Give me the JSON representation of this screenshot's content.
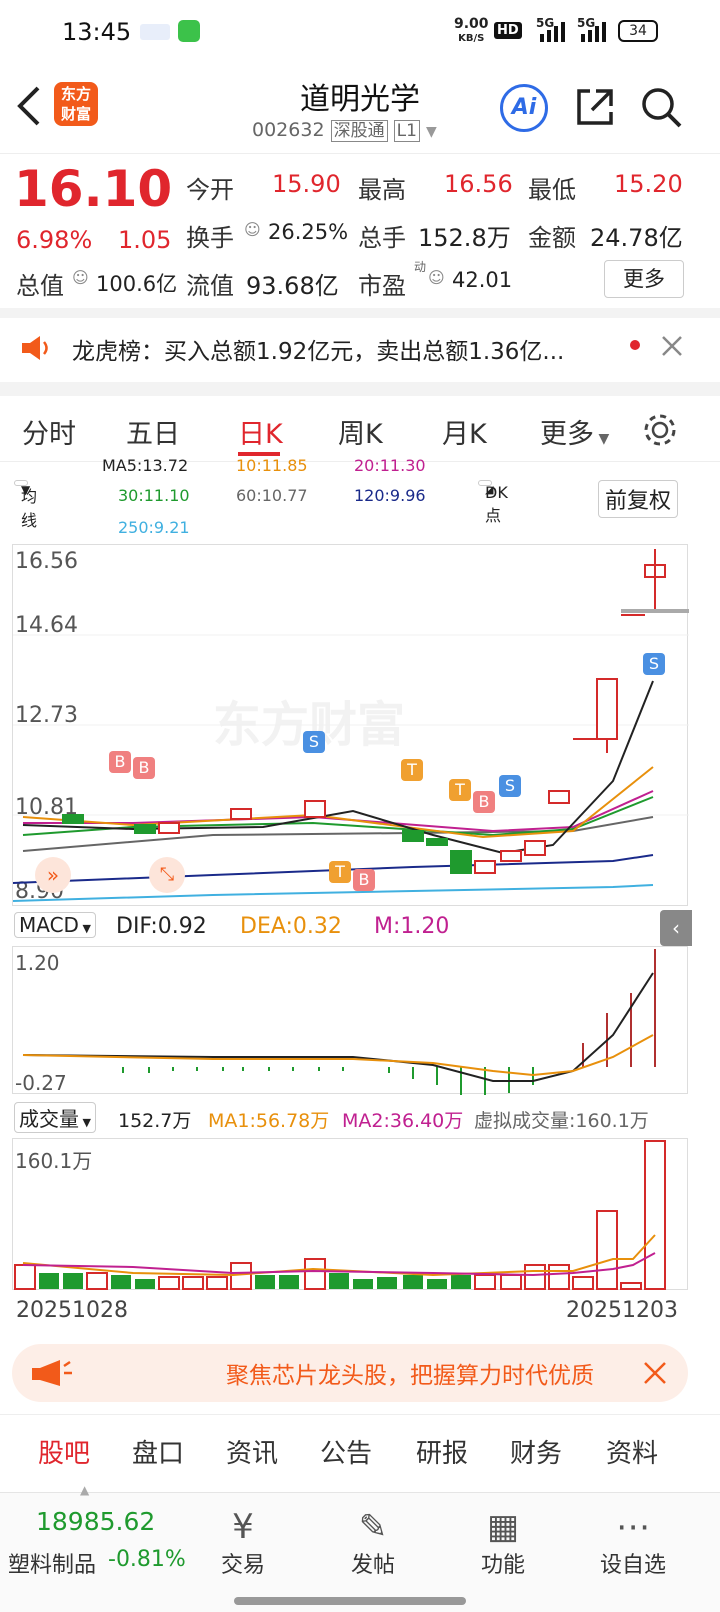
{
  "status_bar": {
    "time": "13:45",
    "net_speed": "9.00",
    "net_unit": "KB/S",
    "hd": "HD",
    "sig1": "5G",
    "sig2": "5G",
    "battery": "34"
  },
  "header": {
    "logo_line1": "东方",
    "logo_line2": "财富",
    "stock_name": "道明光学",
    "stock_code": "002632",
    "exchange_tag": "深股通",
    "level_tag": "L1",
    "ai_label": "Ai"
  },
  "quote": {
    "price": "16.10",
    "change_pct": "6.98%",
    "change_amt": "1.05",
    "open_label": "今开",
    "open": "15.90",
    "high_label": "最高",
    "high": "16.56",
    "low_label": "最低",
    "low": "15.20",
    "turnover_label": "换手",
    "turnover": "26.25%",
    "volume_label": "总手",
    "volume": "152.8万",
    "amount_label": "金额",
    "amount": "24.78亿",
    "mktcap_label": "总值",
    "mktcap": "100.6亿",
    "float_label": "流值",
    "float_cap": "93.68亿",
    "pe_label": "市盈",
    "pe_sup": "动",
    "pe": "42.01",
    "more_button": "更多"
  },
  "notice": {
    "text": "龙虎榜：买入总额1.92亿元，卖出总额1.36亿..."
  },
  "tabs": {
    "items": [
      "分时",
      "五日",
      "日K",
      "周K",
      "月K",
      "更多"
    ],
    "active": "日K"
  },
  "ma_legend": {
    "ma5": "MA5:13.72",
    "ma10": "10:11.85",
    "ma20": "20:11.30",
    "ma30": "30:11.10",
    "ma60": "60:10.77",
    "ma120": "120:9.96",
    "ma250": "250:9.21",
    "ma_select": "均线",
    "dk_button": "DK点",
    "adjust_button": "前复权",
    "colors": {
      "ma5": "#222222",
      "ma10": "#e8900c",
      "ma20": "#c02090",
      "ma30": "#1f9a2e",
      "ma60": "#666666",
      "ma120": "#1a2a8a",
      "ma250": "#40b0e0"
    }
  },
  "kline": {
    "y_labels": [
      "16.56",
      "14.64",
      "12.73",
      "10.81",
      "8.90"
    ],
    "watermark": "东方财富",
    "markers": [
      "B",
      "B",
      "S",
      "T",
      "B",
      "T",
      "T",
      "B",
      "S",
      "S"
    ]
  },
  "macd": {
    "select": "MACD",
    "dif": "DIF:0.92",
    "dea": "DEA:0.32",
    "m": "M:1.20",
    "y_top": "1.20",
    "y_bottom": "-0.27"
  },
  "volume": {
    "select": "成交量",
    "value": "152.7万",
    "ma1": "MA1:56.78万",
    "ma2": "MA2:36.40万",
    "virtual": "虚拟成交量:160.1万",
    "y_top": "160.1万",
    "date_start": "20251028",
    "date_end": "20251203"
  },
  "promo": {
    "text": "聚焦芯片龙头股，把握算力时代优质"
  },
  "sub_tabs": [
    "股吧",
    "盘口",
    "资讯",
    "公告",
    "研报",
    "财务",
    "资料"
  ],
  "bottom": {
    "index_value": "18985.62",
    "index_name": "塑料制品",
    "index_change": "-0.81%",
    "nav": [
      "交易",
      "发帖",
      "功能",
      "设自选"
    ]
  }
}
